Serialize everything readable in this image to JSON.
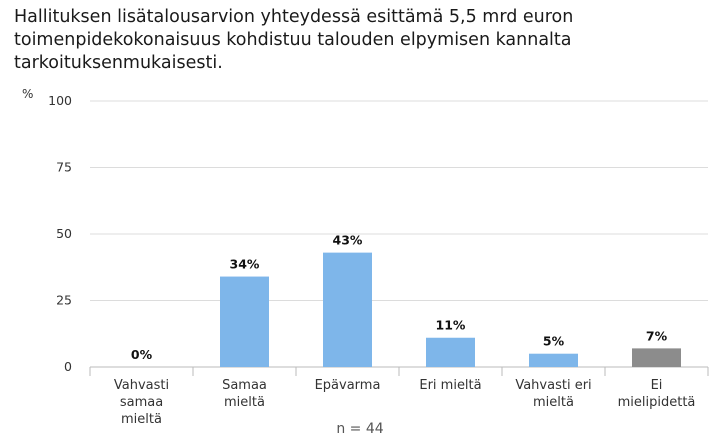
{
  "chart_data": {
    "type": "bar",
    "title": "Hallituksen lisätalousarvion yhteydessä esittämä 5,5 mrd euron toimenpidekokonaisuus kohdistuu talouden elpymisen kannalta tarkoituksenmukaisesti.",
    "ylabel": "%",
    "xlabel": "",
    "ylim": [
      0,
      100
    ],
    "yticks": [
      0,
      25,
      50,
      75,
      100
    ],
    "grid": true,
    "categories": [
      [
        "Vahvasti",
        "samaa",
        "mieltä"
      ],
      [
        "Samaa",
        "mieltä"
      ],
      [
        "Epävarma"
      ],
      [
        "Eri mieltä"
      ],
      [
        "Vahvasti eri",
        "mieltä"
      ],
      [
        "Ei",
        "mielipidettä"
      ]
    ],
    "values": [
      0,
      34,
      43,
      11,
      5,
      7
    ],
    "data_labels": [
      "0%",
      "34%",
      "43%",
      "11%",
      "5%",
      "7%"
    ],
    "colors": [
      "#7eb6ea",
      "#7eb6ea",
      "#7eb6ea",
      "#7eb6ea",
      "#7eb6ea",
      "#8c8c8c"
    ],
    "note": "n = 44"
  }
}
